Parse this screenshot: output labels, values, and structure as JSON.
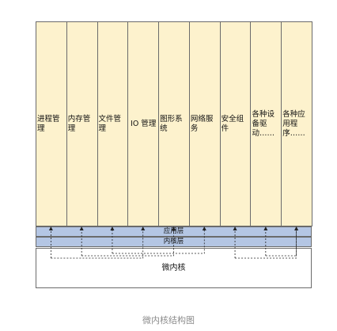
{
  "services": [
    "进程管理",
    "内存管理",
    "文件管理",
    "IO 管理",
    "图形系统",
    "网络服务",
    "安全组件",
    "各种设备驱动……",
    "各种应用程序……"
  ],
  "layers": {
    "app_layer": "应用层",
    "kernel_layer": "内核层",
    "microkernel": "微内核"
  },
  "caption": "微内核结构图",
  "colors": {
    "service_fill": "#fdf2cd",
    "layer_fill": "#b4c6e4",
    "border": "#6b6b6b"
  }
}
